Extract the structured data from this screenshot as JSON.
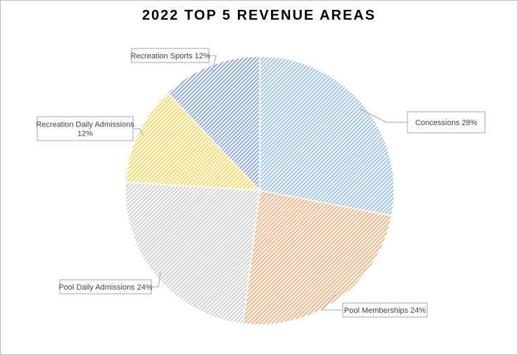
{
  "chart_data": {
    "type": "pie",
    "title": "2022 TOP 5 REVENUE AREAS",
    "slices": [
      {
        "name": "Concessions",
        "value": 28,
        "label": "Concessions 28%",
        "color": "#9dc3e6",
        "stroke": "#5b9bd5"
      },
      {
        "name": "Pool Memberships",
        "value": 24,
        "label": "Pool Memberships 24%",
        "color": "#f4b183",
        "stroke": "#ed7d31"
      },
      {
        "name": "Pool Daily Admissions",
        "value": 24,
        "label": "Pool Daily Admissions 24%",
        "color": "#d0d0d0",
        "stroke": "#a5a5a5"
      },
      {
        "name": "Recreation Daily Admissions",
        "value": 12,
        "label": "Recreation Daily Admissions\n12%",
        "color": "#ffd966",
        "stroke": "#ffc000"
      },
      {
        "name": "Recreation Sports",
        "value": 12,
        "label": "Recreation Sports 12%",
        "color": "#8faadc",
        "stroke": "#4472c4"
      }
    ],
    "start_angle_deg": 0,
    "direction": "clockwise",
    "fill_pattern": "diagonal-hatch",
    "legend": "none"
  }
}
